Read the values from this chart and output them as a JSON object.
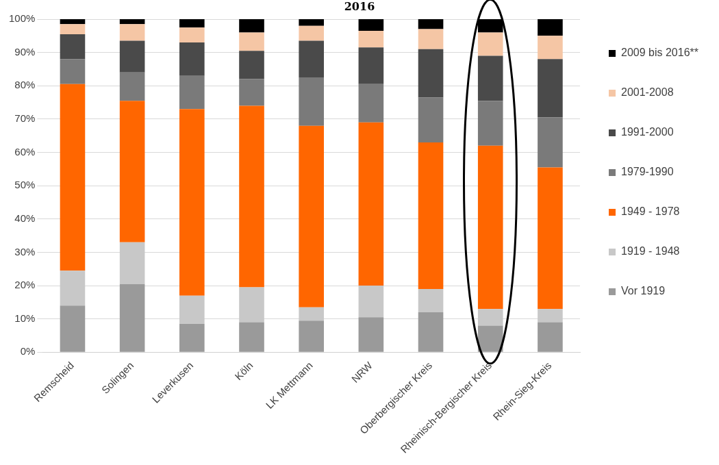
{
  "chart_data": {
    "type": "bar",
    "title": "2016",
    "stacked": true,
    "categories": [
      "Remscheid",
      "Solingen",
      "Leverkusen",
      "Köln",
      "LK Mettmann",
      "NRW",
      "Oberbergischer Kreis",
      "Rheinisch-Bergischer Kreis",
      "Rhein-Sieg-Kreis"
    ],
    "series": [
      {
        "name": "Vor 1919",
        "color": "#9a9a9a",
        "values": [
          14,
          20.5,
          8.5,
          9,
          9.5,
          10.5,
          12,
          8,
          9
        ]
      },
      {
        "name": "1919 - 1948",
        "color": "#c8c8c8",
        "values": [
          10.5,
          12.5,
          8.5,
          10.5,
          4,
          9.5,
          7,
          5,
          4
        ]
      },
      {
        "name": "1949 - 1978",
        "color": "#ff6600",
        "values": [
          56,
          42.5,
          56,
          54.5,
          54.5,
          49,
          44,
          49,
          42.5
        ]
      },
      {
        "name": "1979-1990",
        "color": "#7a7a7a",
        "values": [
          7.5,
          8.5,
          10,
          8,
          14.5,
          11.5,
          13.5,
          13.5,
          15
        ]
      },
      {
        "name": "1991-2000",
        "color": "#4a4a4a",
        "values": [
          7.5,
          9.5,
          10,
          8.5,
          11,
          11,
          14.5,
          13.5,
          17.5
        ]
      },
      {
        "name": "2001-2008",
        "color": "#f5c6a5",
        "values": [
          3,
          5,
          4.5,
          5.5,
          4.5,
          5,
          6,
          7,
          7
        ]
      },
      {
        "name": "2009 bis 2016**",
        "color": "#000000",
        "values": [
          1.5,
          1.5,
          2.5,
          4,
          2,
          3.5,
          3,
          4,
          5
        ]
      }
    ],
    "ylim": [
      0,
      100
    ],
    "yticks": [
      {
        "value": 0,
        "label": "0%"
      },
      {
        "value": 10,
        "label": "10%"
      },
      {
        "value": 20,
        "label": "20%"
      },
      {
        "value": 30,
        "label": "30%"
      },
      {
        "value": 40,
        "label": "40%"
      },
      {
        "value": 50,
        "label": "50%"
      },
      {
        "value": 60,
        "label": "60%"
      },
      {
        "value": 70,
        "label": "70%"
      },
      {
        "value": 80,
        "label": "80%"
      },
      {
        "value": 90,
        "label": "90%"
      },
      {
        "value": 100,
        "label": "100%"
      }
    ],
    "grid": "y",
    "legend": "right"
  }
}
